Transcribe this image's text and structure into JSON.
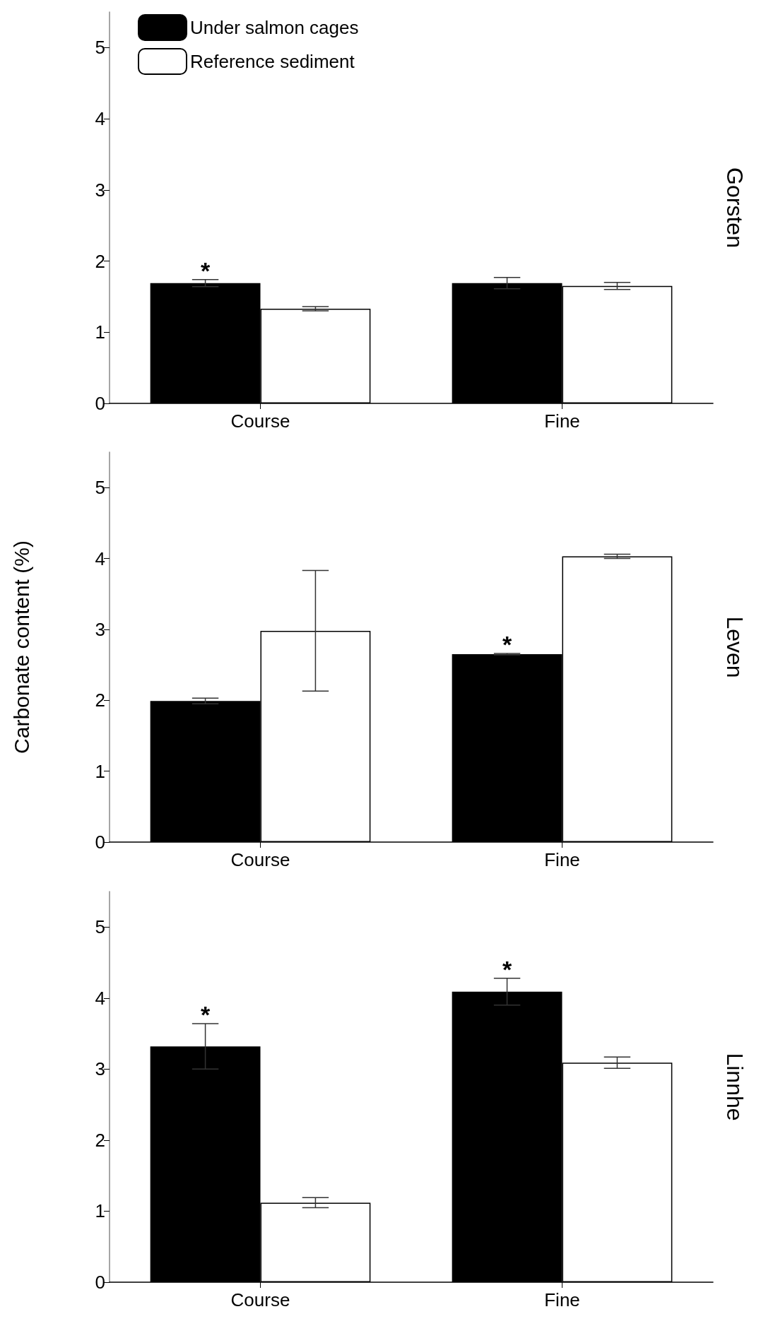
{
  "chart_data": [
    {
      "type": "bar",
      "title": "Gorsten",
      "categories": [
        "Course",
        "Fine"
      ],
      "legend": "top left",
      "ylim": [
        0,
        5.5
      ],
      "yticks": [
        0,
        1,
        2,
        3,
        4,
        5
      ],
      "grid": false,
      "series": [
        {
          "name": "Under salmon cages",
          "color": "#000000",
          "values": [
            1.69,
            1.69
          ],
          "errors": [
            0.05,
            0.08
          ],
          "value_labels": [
            "*",
            null
          ]
        },
        {
          "name": "Reference sediment",
          "color": "#ffffff",
          "values": [
            1.33,
            1.65
          ],
          "errors": [
            0.03,
            0.05
          ]
        }
      ]
    },
    {
      "type": "bar",
      "title": "Leven",
      "ylabel": "Carbonate content (%)",
      "categories": [
        "Course",
        "Fine"
      ],
      "ylim": [
        0,
        5.5
      ],
      "yticks": [
        0,
        1,
        2,
        3,
        4,
        5
      ],
      "grid": false,
      "series": [
        {
          "color": "#000000",
          "values": [
            1.99,
            2.65
          ],
          "errors": [
            0.04,
            0.01
          ],
          "value_labels": [
            null,
            "*"
          ]
        },
        {
          "color": "#ffffff",
          "values": [
            2.98,
            4.03
          ],
          "errors": [
            0.85,
            0.03
          ]
        }
      ]
    },
    {
      "type": "bar",
      "title": "Linnhe",
      "categories": [
        "Course",
        "Fine"
      ],
      "ylim": [
        0,
        5.5
      ],
      "yticks": [
        0,
        1,
        2,
        3,
        4,
        5
      ],
      "grid": false,
      "series": [
        {
          "color": "#000000",
          "values": [
            3.32,
            4.09
          ],
          "errors": [
            0.32,
            0.19
          ],
          "value_labels": [
            "*",
            "*"
          ]
        },
        {
          "color": "#ffffff",
          "values": [
            1.12,
            3.09
          ],
          "errors": [
            0.07,
            0.08
          ]
        }
      ]
    }
  ]
}
